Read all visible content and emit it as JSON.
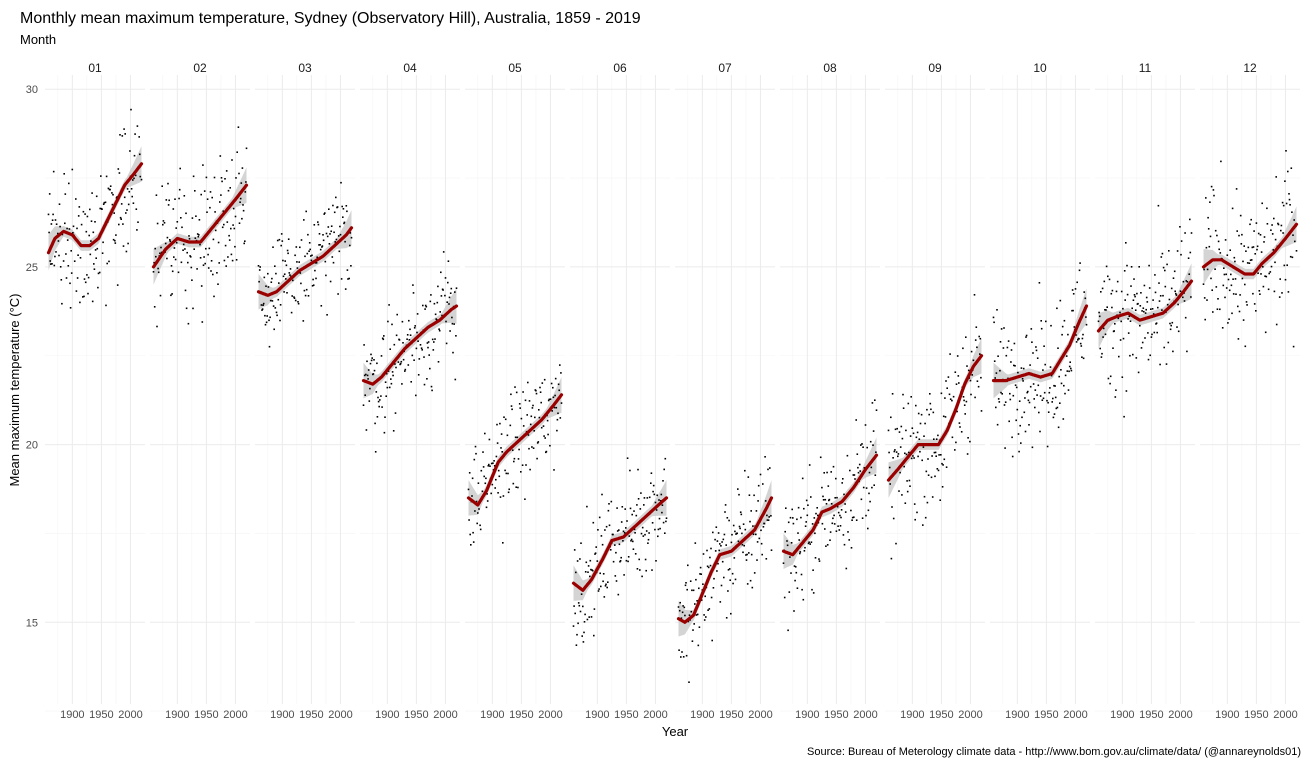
{
  "chart_data": {
    "type": "scatter",
    "title": "Monthly mean maximum temperature, Sydney (Observatory Hill), Australia, 1859 - 2019",
    "subtitle": "Month",
    "xlabel": "Year",
    "ylabel": "Mean maximum temperature (°C)",
    "caption": "Source: Bureau of Meterology climate data - http://www.bom.gov.au/climate/data/ (@annareynolds01)",
    "xlim": [
      1853,
      2025
    ],
    "ylim": [
      12.7,
      30.4
    ],
    "x_ticks": [
      1900,
      1950,
      2000
    ],
    "x_tick_labels": [
      "1900",
      "1950",
      "2000"
    ],
    "y_ticks": [
      15,
      20,
      25,
      30
    ],
    "y_tick_labels": [
      "15",
      "20",
      "25",
      "30"
    ],
    "grid": true,
    "legend": "none",
    "colors": {
      "points": "#000000",
      "smooth_line": "#9b0000",
      "confidence_band": "#cccccc",
      "grid": "#ebebeb"
    },
    "facets": [
      {
        "month": "01",
        "smooth": [
          [
            1859,
            25.4
          ],
          [
            1870,
            25.8
          ],
          [
            1885,
            26.0
          ],
          [
            1900,
            25.9
          ],
          [
            1915,
            25.6
          ],
          [
            1930,
            25.6
          ],
          [
            1945,
            25.8
          ],
          [
            1960,
            26.3
          ],
          [
            1975,
            26.8
          ],
          [
            1990,
            27.3
          ],
          [
            2005,
            27.6
          ],
          [
            2019,
            27.9
          ]
        ],
        "sd": 0.85
      },
      {
        "month": "02",
        "smooth": [
          [
            1859,
            25.0
          ],
          [
            1880,
            25.5
          ],
          [
            1900,
            25.8
          ],
          [
            1920,
            25.7
          ],
          [
            1940,
            25.7
          ],
          [
            1960,
            26.1
          ],
          [
            1980,
            26.5
          ],
          [
            2000,
            26.9
          ],
          [
            2019,
            27.3
          ]
        ],
        "sd": 0.9
      },
      {
        "month": "03",
        "smooth": [
          [
            1859,
            24.3
          ],
          [
            1875,
            24.2
          ],
          [
            1890,
            24.3
          ],
          [
            1910,
            24.6
          ],
          [
            1930,
            24.9
          ],
          [
            1950,
            25.1
          ],
          [
            1970,
            25.3
          ],
          [
            1990,
            25.6
          ],
          [
            2010,
            25.9
          ],
          [
            2019,
            26.1
          ]
        ],
        "sd": 0.75
      },
      {
        "month": "04",
        "smooth": [
          [
            1859,
            21.8
          ],
          [
            1875,
            21.7
          ],
          [
            1890,
            21.9
          ],
          [
            1910,
            22.3
          ],
          [
            1930,
            22.7
          ],
          [
            1950,
            23.0
          ],
          [
            1970,
            23.3
          ],
          [
            1990,
            23.5
          ],
          [
            2010,
            23.8
          ],
          [
            2019,
            23.9
          ]
        ],
        "sd": 0.8
      },
      {
        "month": "05",
        "smooth": [
          [
            1859,
            18.5
          ],
          [
            1875,
            18.3
          ],
          [
            1890,
            18.7
          ],
          [
            1910,
            19.5
          ],
          [
            1925,
            19.8
          ],
          [
            1945,
            20.1
          ],
          [
            1965,
            20.4
          ],
          [
            1985,
            20.7
          ],
          [
            2005,
            21.1
          ],
          [
            2019,
            21.4
          ]
        ],
        "sd": 0.8
      },
      {
        "month": "06",
        "smooth": [
          [
            1859,
            16.1
          ],
          [
            1875,
            15.9
          ],
          [
            1890,
            16.2
          ],
          [
            1910,
            16.8
          ],
          [
            1925,
            17.3
          ],
          [
            1945,
            17.4
          ],
          [
            1965,
            17.7
          ],
          [
            1985,
            18.0
          ],
          [
            2005,
            18.3
          ],
          [
            2019,
            18.5
          ]
        ],
        "sd": 0.75
      },
      {
        "month": "07",
        "smooth": [
          [
            1859,
            15.1
          ],
          [
            1870,
            15.0
          ],
          [
            1885,
            15.2
          ],
          [
            1900,
            15.8
          ],
          [
            1915,
            16.4
          ],
          [
            1930,
            16.9
          ],
          [
            1950,
            17.0
          ],
          [
            1970,
            17.3
          ],
          [
            1990,
            17.6
          ],
          [
            2010,
            18.2
          ],
          [
            2019,
            18.5
          ]
        ],
        "sd": 0.9
      },
      {
        "month": "08",
        "smooth": [
          [
            1859,
            17.0
          ],
          [
            1875,
            16.9
          ],
          [
            1890,
            17.2
          ],
          [
            1910,
            17.6
          ],
          [
            1925,
            18.1
          ],
          [
            1940,
            18.2
          ],
          [
            1960,
            18.4
          ],
          [
            1980,
            18.8
          ],
          [
            2000,
            19.3
          ],
          [
            2019,
            19.7
          ]
        ],
        "sd": 0.85
      },
      {
        "month": "09",
        "smooth": [
          [
            1859,
            19.0
          ],
          [
            1875,
            19.3
          ],
          [
            1890,
            19.6
          ],
          [
            1910,
            20.0
          ],
          [
            1930,
            20.0
          ],
          [
            1945,
            20.0
          ],
          [
            1960,
            20.4
          ],
          [
            1975,
            21.0
          ],
          [
            1990,
            21.7
          ],
          [
            2005,
            22.2
          ],
          [
            2019,
            22.5
          ]
        ],
        "sd": 0.95
      },
      {
        "month": "10",
        "smooth": [
          [
            1859,
            21.8
          ],
          [
            1880,
            21.8
          ],
          [
            1900,
            21.9
          ],
          [
            1920,
            22.0
          ],
          [
            1940,
            21.9
          ],
          [
            1960,
            22.0
          ],
          [
            1975,
            22.4
          ],
          [
            1990,
            22.8
          ],
          [
            2005,
            23.4
          ],
          [
            2019,
            23.9
          ]
        ],
        "sd": 0.9
      },
      {
        "month": "11",
        "smooth": [
          [
            1859,
            23.2
          ],
          [
            1875,
            23.5
          ],
          [
            1890,
            23.6
          ],
          [
            1910,
            23.7
          ],
          [
            1930,
            23.5
          ],
          [
            1950,
            23.6
          ],
          [
            1970,
            23.7
          ],
          [
            1990,
            24.0
          ],
          [
            2005,
            24.3
          ],
          [
            2019,
            24.6
          ]
        ],
        "sd": 1.0
      },
      {
        "month": "12",
        "smooth": [
          [
            1859,
            25.0
          ],
          [
            1875,
            25.2
          ],
          [
            1890,
            25.2
          ],
          [
            1910,
            25.0
          ],
          [
            1930,
            24.8
          ],
          [
            1945,
            24.8
          ],
          [
            1960,
            25.1
          ],
          [
            1980,
            25.4
          ],
          [
            2000,
            25.8
          ],
          [
            2019,
            26.2
          ]
        ],
        "sd": 1.05
      }
    ]
  }
}
